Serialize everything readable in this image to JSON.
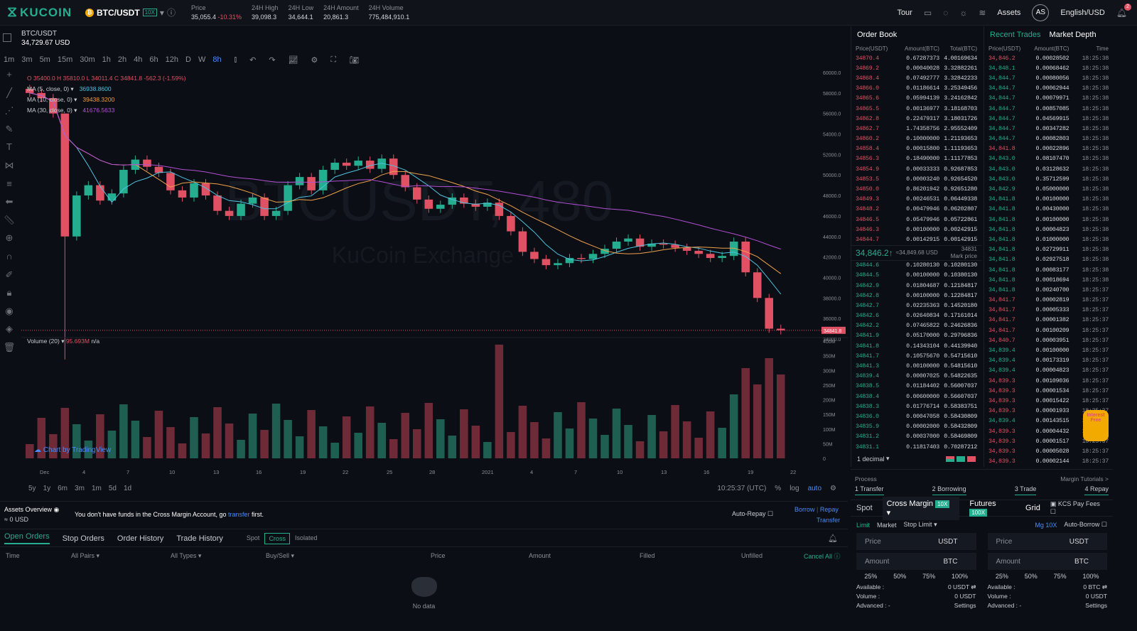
{
  "brand": "KUCOIN",
  "pair": "BTC/USDT",
  "leverage": "10X",
  "stats": [
    {
      "label": "Price",
      "value": "35,055.4",
      "change": "-10.31%"
    },
    {
      "label": "24H High",
      "value": "39,098.3"
    },
    {
      "label": "24H Low",
      "value": "34,644.1"
    },
    {
      "label": "24H Amount",
      "value": "20,861.3"
    },
    {
      "label": "24H Volume",
      "value": "775,484,910.1"
    }
  ],
  "nav": {
    "tour": "Tour",
    "assets": "Assets",
    "avatar": "AS",
    "lang": "English/USD",
    "bell_badge": "2"
  },
  "chart": {
    "symbol": "BTC/USDT",
    "symbol_price": "34,729.67 USD",
    "timeframes": [
      "1m",
      "3m",
      "5m",
      "15m",
      "30m",
      "1h",
      "2h",
      "4h",
      "6h",
      "12h",
      "D",
      "W",
      "8h"
    ],
    "active_tf": "8h",
    "ohlc": "O 35400.0  H 35810.0  L 34011.4  C 34841.8  -562.3 (-1.59%)",
    "ma": [
      {
        "label": "MA (5, close, 0)",
        "value": "36938.8600",
        "color": "#4ec3e0"
      },
      {
        "label": "MA (10, close, 0)",
        "value": "39438.3200",
        "color": "#f0a14a"
      },
      {
        "label": "MA (30, close, 0)",
        "value": "41676.5633",
        "color": "#b24fd6"
      }
    ],
    "watermark1": "BTCUSDT, 480",
    "watermark2": "KuCoin Exchange",
    "price_ticks": [
      "60000.0",
      "58000.0",
      "56000.0",
      "54000.0",
      "52000.0",
      "50000.0",
      "48000.0",
      "46000.0",
      "44000.0",
      "42000.0",
      "40000.0",
      "38000.0",
      "36000.0",
      "34000.0"
    ],
    "last_price": "34841.8",
    "volume_label": "Volume (20)",
    "volume_value": "95.693M",
    "volume_na": "n/a",
    "vol_ticks": [
      "400M",
      "350M",
      "300M",
      "250M",
      "200M",
      "150M",
      "100M",
      "50M",
      "0"
    ],
    "date_ticks": [
      "Dec",
      "4",
      "7",
      "10",
      "13",
      "16",
      "19",
      "22",
      "25",
      "28",
      "2021",
      "4",
      "7",
      "10",
      "13",
      "16",
      "19",
      "22"
    ],
    "tradingview": "Chart by TradingView",
    "ranges": [
      "5y",
      "1y",
      "6m",
      "3m",
      "1m",
      "5d",
      "1d"
    ],
    "time": "10:25:37 (UTC)",
    "pct": "%",
    "log": "log",
    "auto": "auto"
  },
  "chart_data": {
    "type": "candlestick",
    "series": [
      {
        "name": "BTC/USDT",
        "close": [
          58000,
          57500,
          56000,
          44000,
          48000,
          49000,
          47500,
          48200,
          50500,
          51500,
          50800,
          50200,
          48500,
          47800,
          49200,
          48000,
          46500,
          46000,
          47200,
          47800,
          46000,
          46500,
          49000,
          49800,
          48500,
          50500,
          51200,
          50900,
          51400,
          50600,
          51600,
          50000,
          48800,
          47600,
          46700,
          47100,
          47800,
          47200,
          46900,
          47300,
          46000,
          44500,
          42500,
          41800,
          41200,
          41400,
          41900,
          41800,
          42300,
          42800,
          43500,
          43800,
          43000,
          43300,
          43200,
          42900,
          42600,
          42300,
          41900,
          42100,
          43500,
          40500,
          38000,
          35000,
          34841.8
        ]
      }
    ],
    "ylim": [
      34000,
      60000
    ],
    "volume": {
      "name": "Volume (20)",
      "last": "95.693M"
    }
  },
  "order_book": {
    "title": "Order Book",
    "cols": [
      "Price(USDT)",
      "Amount(BTC)",
      "Total(BTC)"
    ],
    "asks": [
      [
        "34870.4",
        "0.67287373",
        "4.00169634"
      ],
      [
        "34869.2",
        "0.00040028",
        "3.32882261"
      ],
      [
        "34868.4",
        "0.07492777",
        "3.32842233"
      ],
      [
        "34866.0",
        "0.01186614",
        "3.25349456"
      ],
      [
        "34865.6",
        "0.05994139",
        "3.24162842"
      ],
      [
        "34865.5",
        "0.00136977",
        "3.18168703"
      ],
      [
        "34862.8",
        "0.22479317",
        "3.18031726"
      ],
      [
        "34862.7",
        "1.74358756",
        "2.95552409"
      ],
      [
        "34860.2",
        "0.10000000",
        "1.21193653"
      ],
      [
        "34858.4",
        "0.00015800",
        "1.11193653"
      ],
      [
        "34856.3",
        "0.18490000",
        "1.11177853"
      ],
      [
        "34854.9",
        "0.00033333",
        "0.92687853"
      ],
      [
        "34853.5",
        "0.00003240",
        "0.92654520"
      ],
      [
        "34850.0",
        "0.86201942",
        "0.92651280"
      ],
      [
        "34849.3",
        "0.00246531",
        "0.06449338"
      ],
      [
        "34848.2",
        "0.00479946",
        "0.06202807"
      ],
      [
        "34846.5",
        "0.05479946",
        "0.05722861"
      ],
      [
        "34846.3",
        "0.00100000",
        "0.00242915"
      ],
      [
        "34844.7",
        "0.00142915",
        "0.00142915"
      ]
    ],
    "mid_price": "34,846.2↑",
    "mid_usd": "≈34,849.68 USD",
    "mark_val": "34831",
    "mark_label": "Mark price",
    "bids": [
      [
        "34844.6",
        "0.10280130",
        "0.10280130"
      ],
      [
        "34844.5",
        "0.00100000",
        "0.10380130"
      ],
      [
        "34842.9",
        "0.01804687",
        "0.12184817"
      ],
      [
        "34842.8",
        "0.00100000",
        "0.12284817"
      ],
      [
        "34842.7",
        "0.02235363",
        "0.14520180"
      ],
      [
        "34842.6",
        "0.02640834",
        "0.17161014"
      ],
      [
        "34842.2",
        "0.07465822",
        "0.24626836"
      ],
      [
        "34841.9",
        "0.05170000",
        "0.29796836"
      ],
      [
        "34841.8",
        "0.14343104",
        "0.44139940"
      ],
      [
        "34841.7",
        "0.10575670",
        "0.54715610"
      ],
      [
        "34841.3",
        "0.00100000",
        "0.54815610"
      ],
      [
        "34839.4",
        "0.00007025",
        "0.54822635"
      ],
      [
        "34838.5",
        "0.01184402",
        "0.56007037"
      ],
      [
        "34838.4",
        "0.00600000",
        "0.56607037"
      ],
      [
        "34838.3",
        "0.01776714",
        "0.58383751"
      ],
      [
        "34836.0",
        "0.00047058",
        "0.58430809"
      ],
      [
        "34835.9",
        "0.00002000",
        "0.58432809"
      ],
      [
        "34831.2",
        "0.00037000",
        "0.58469809"
      ],
      [
        "34831.1",
        "0.11817403",
        "0.70287212"
      ]
    ],
    "decimal": "1 decimal"
  },
  "recent_trades": {
    "tabs": [
      "Recent Trades",
      "Market Depth"
    ],
    "cols": [
      "Price(USDT)",
      "Amount(BTC)",
      "Time"
    ],
    "rows": [
      [
        "34,846.2",
        "0.00028502",
        "18:25:38",
        "r"
      ],
      [
        "34,848.1",
        "0.00068462",
        "18:25:38",
        "g"
      ],
      [
        "34,844.7",
        "0.00080056",
        "18:25:38",
        "g"
      ],
      [
        "34,844.7",
        "0.00062944",
        "18:25:38",
        "g"
      ],
      [
        "34,844.7",
        "0.00079971",
        "18:25:38",
        "g"
      ],
      [
        "34,844.7",
        "0.00857085",
        "18:25:38",
        "g"
      ],
      [
        "34,844.7",
        "0.04569915",
        "18:25:38",
        "g"
      ],
      [
        "34,844.7",
        "0.00347282",
        "18:25:38",
        "g"
      ],
      [
        "34,844.7",
        "0.00082803",
        "18:25:38",
        "g"
      ],
      [
        "34,841.8",
        "0.00022896",
        "18:25:38",
        "r"
      ],
      [
        "34,843.0",
        "0.08107470",
        "18:25:38",
        "g"
      ],
      [
        "34,843.0",
        "0.03128632",
        "18:25:38",
        "g"
      ],
      [
        "34,843.0",
        "0.35712599",
        "18:25:38",
        "g"
      ],
      [
        "34,842.9",
        "0.05000000",
        "18:25:38",
        "g"
      ],
      [
        "34,841.8",
        "0.00100000",
        "18:25:38",
        "g"
      ],
      [
        "34,841.8",
        "0.00430000",
        "18:25:38",
        "g"
      ],
      [
        "34,841.8",
        "0.00100000",
        "18:25:38",
        "g"
      ],
      [
        "34,841.8",
        "0.00004823",
        "18:25:38",
        "g"
      ],
      [
        "34,841.8",
        "0.01000000",
        "18:25:38",
        "g"
      ],
      [
        "34,841.8",
        "0.02729911",
        "18:25:38",
        "g"
      ],
      [
        "34,841.8",
        "0.02927518",
        "18:25:38",
        "g"
      ],
      [
        "34,841.8",
        "0.00083177",
        "18:25:38",
        "g"
      ],
      [
        "34,841.8",
        "0.00018694",
        "18:25:38",
        "g"
      ],
      [
        "34,841.8",
        "0.00240700",
        "18:25:37",
        "g"
      ],
      [
        "34,841.7",
        "0.00002819",
        "18:25:37",
        "r"
      ],
      [
        "34,841.7",
        "0.00005333",
        "18:25:37",
        "r"
      ],
      [
        "34,841.7",
        "0.00001382",
        "18:25:37",
        "r"
      ],
      [
        "34,841.7",
        "0.00100209",
        "18:25:37",
        "r"
      ],
      [
        "34,840.7",
        "0.00003951",
        "18:25:37",
        "r"
      ],
      [
        "34,839.4",
        "0.00100000",
        "18:25:37",
        "g"
      ],
      [
        "34,839.4",
        "0.00173319",
        "18:25:37",
        "g"
      ],
      [
        "34,839.4",
        "0.00004823",
        "18:25:37",
        "g"
      ],
      [
        "34,839.3",
        "0.00109036",
        "18:25:37",
        "r"
      ],
      [
        "34,839.3",
        "0.00001534",
        "18:25:37",
        "r"
      ],
      [
        "34,839.3",
        "0.00015422",
        "18:25:37",
        "r"
      ],
      [
        "34,839.3",
        "0.00001933",
        "18:25:37",
        "r"
      ],
      [
        "34,839.4",
        "0.00143515",
        "18:25:37",
        "g"
      ],
      [
        "34,839.3",
        "0.00004432",
        "18:25:37",
        "r"
      ],
      [
        "34,839.3",
        "0.00001517",
        "18:25:37",
        "r"
      ],
      [
        "34,839.3",
        "0.00005028",
        "18:25:37",
        "r"
      ],
      [
        "34,839.3",
        "0.00002144",
        "18:25:37",
        "r"
      ]
    ],
    "promo": "Interest Free"
  },
  "trade": {
    "process": "Process",
    "tutorials": "Margin Tutorials >",
    "steps": [
      "1 Transfer",
      "2 Borrowing",
      "3 Trade",
      "4 Repay"
    ],
    "tabs": [
      "Spot",
      "Cross Margin",
      "Futures",
      "Grid"
    ],
    "cross_badge": "10X",
    "futures_badge": "100X",
    "fees": "KCS Pay Fees",
    "order_types": [
      "Limit",
      "Market",
      "Stop Limit"
    ],
    "mg": "Mg 10X",
    "auto_borrow": "Auto-Borrow",
    "price_ph": "Price",
    "amount_ph": "Amount",
    "usdt": "USDT",
    "btc": "BTC",
    "pcts": [
      "25%",
      "50%",
      "75%",
      "100%"
    ],
    "left": {
      "available_label": "Available :",
      "available": "0 USDT ⇄",
      "volume_label": "Volume :",
      "volume": "0 USDT",
      "advanced": "Advanced : -",
      "settings": "Settings"
    },
    "right": {
      "available_label": "Available :",
      "available": "0 BTC ⇄",
      "volume_label": "Volume :",
      "volume": "0 USDT",
      "advanced": "Advanced : -",
      "settings": "Settings"
    }
  },
  "assets_overview": {
    "title": "Assets Overview",
    "total": "≈ 0 USD",
    "msg_pre": "You don't have funds in the Cross Margin Account, go ",
    "msg_link": "transfer",
    "msg_post": " first.",
    "auto_repay": "Auto-Repay",
    "borrow": "Borrow",
    "repay": "Repay",
    "transfer": "Transfer"
  },
  "orders": {
    "tabs": [
      "Open Orders",
      "Stop Orders",
      "Order History",
      "Trade History"
    ],
    "filters": [
      "Spot",
      "Cross",
      "Isolated"
    ],
    "cols": [
      "Time",
      "All Pairs",
      "All Types",
      "Buy/Sell",
      "Price",
      "Amount",
      "Filled",
      "Unfilled",
      "Cancel All"
    ],
    "empty": "No data"
  }
}
